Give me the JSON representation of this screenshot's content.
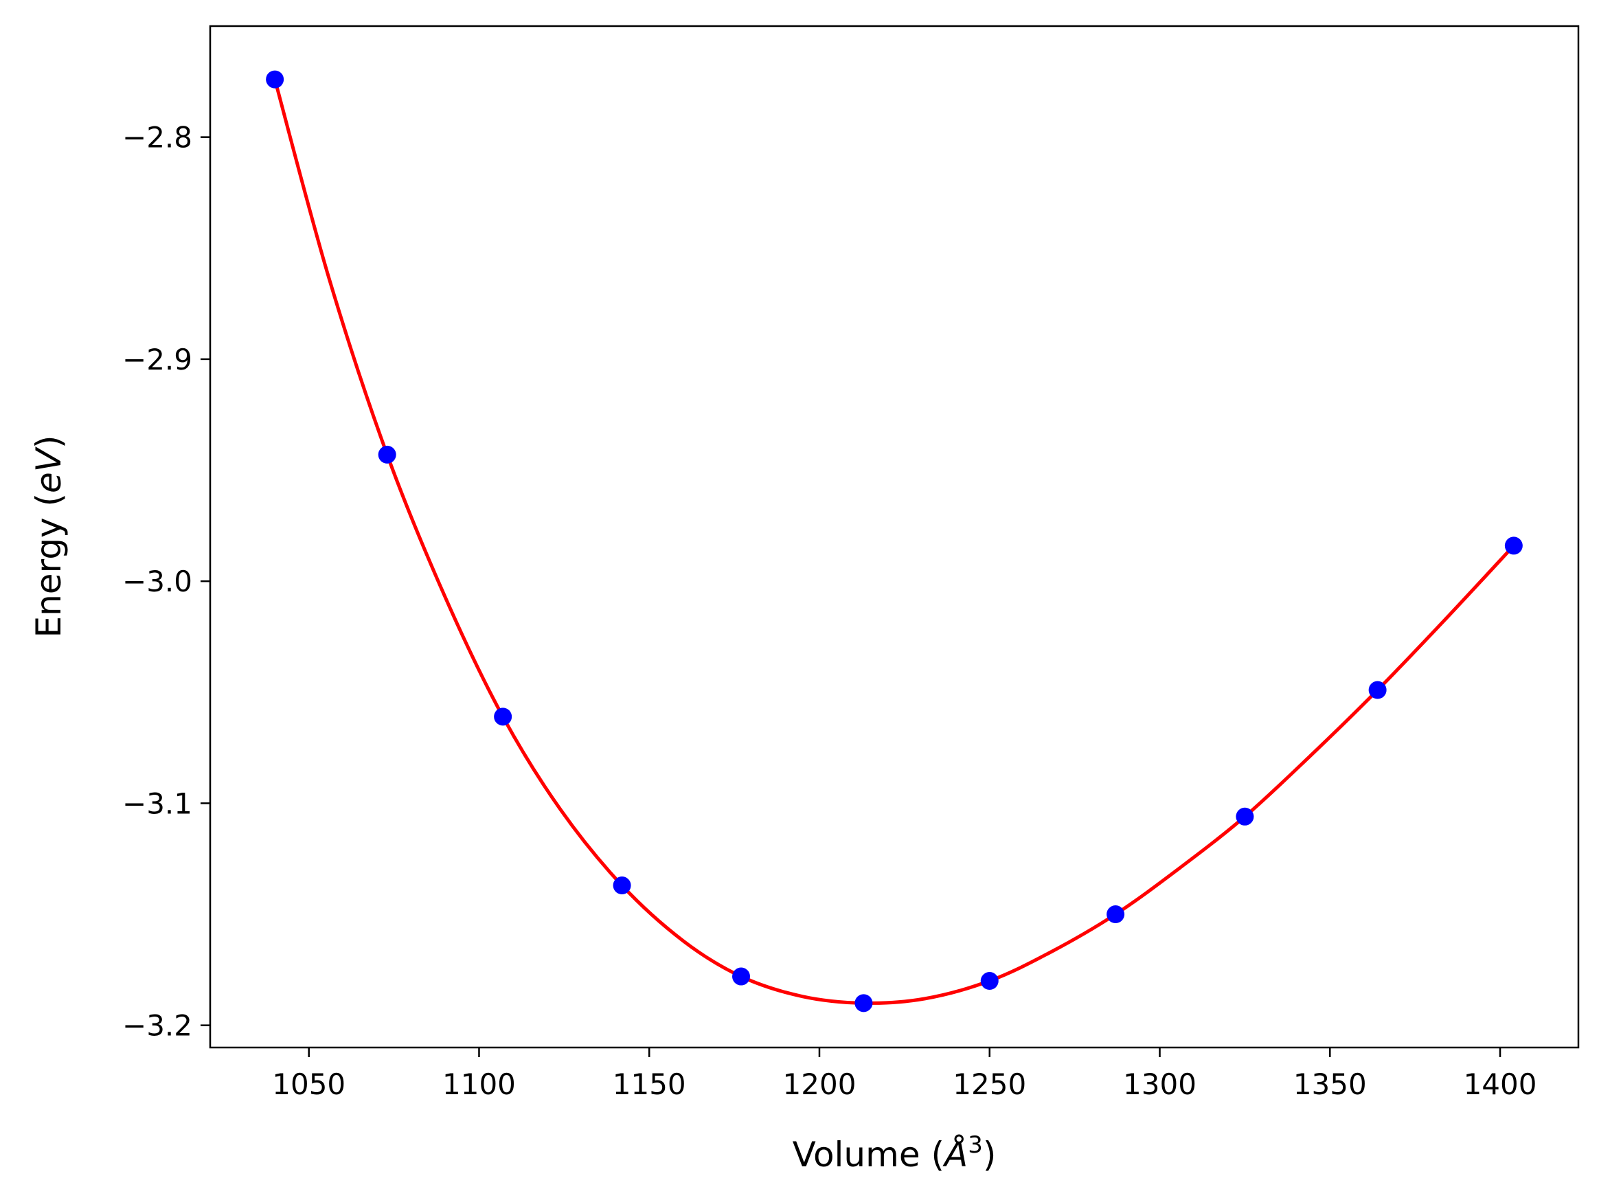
{
  "chart_data": {
    "type": "scatter",
    "title": "",
    "xlabel": {
      "prefix": "Volume (",
      "unit": "Å",
      "superscript": "3",
      "suffix": ")"
    },
    "ylabel": {
      "prefix": "Energy (",
      "unit": "eV",
      "suffix": ")"
    },
    "xlim": [
      1021,
      1423
    ],
    "ylim": [
      -3.21,
      -2.75
    ],
    "xticks": [
      1050,
      1100,
      1150,
      1200,
      1250,
      1300,
      1350,
      1400
    ],
    "yticks": [
      -2.8,
      -2.9,
      -3.0,
      -3.1,
      -3.2
    ],
    "xtick_labels": [
      "1050",
      "1100",
      "1150",
      "1200",
      "1250",
      "1300",
      "1350",
      "1400"
    ],
    "ytick_labels": [
      "−2.8",
      "−2.9",
      "−3.0",
      "−3.1",
      "−3.2"
    ],
    "grid": false,
    "series": [
      {
        "kind": "points",
        "color": "#0000ff",
        "x": [
          1040,
          1073,
          1107,
          1142,
          1177,
          1213,
          1250,
          1287,
          1325,
          1364,
          1404
        ],
        "y": [
          -2.774,
          -2.943,
          -3.061,
          -3.137,
          -3.178,
          -3.19,
          -3.18,
          -3.15,
          -3.106,
          -3.049,
          -2.984
        ]
      },
      {
        "kind": "fit-curve",
        "color": "#ff0000",
        "x": [
          1040,
          1056,
          1073,
          1090,
          1107,
          1124,
          1142,
          1160,
          1177,
          1195,
          1213,
          1231,
          1250,
          1268,
          1287,
          1306,
          1325,
          1344,
          1364,
          1384,
          1404
        ],
        "y": [
          -2.774,
          -2.864,
          -2.943,
          -3.007,
          -3.061,
          -3.103,
          -3.137,
          -3.162,
          -3.178,
          -3.187,
          -3.19,
          -3.188,
          -3.18,
          -3.167,
          -3.15,
          -3.129,
          -3.106,
          -3.079,
          -3.049,
          -3.017,
          -2.984
        ]
      }
    ]
  }
}
